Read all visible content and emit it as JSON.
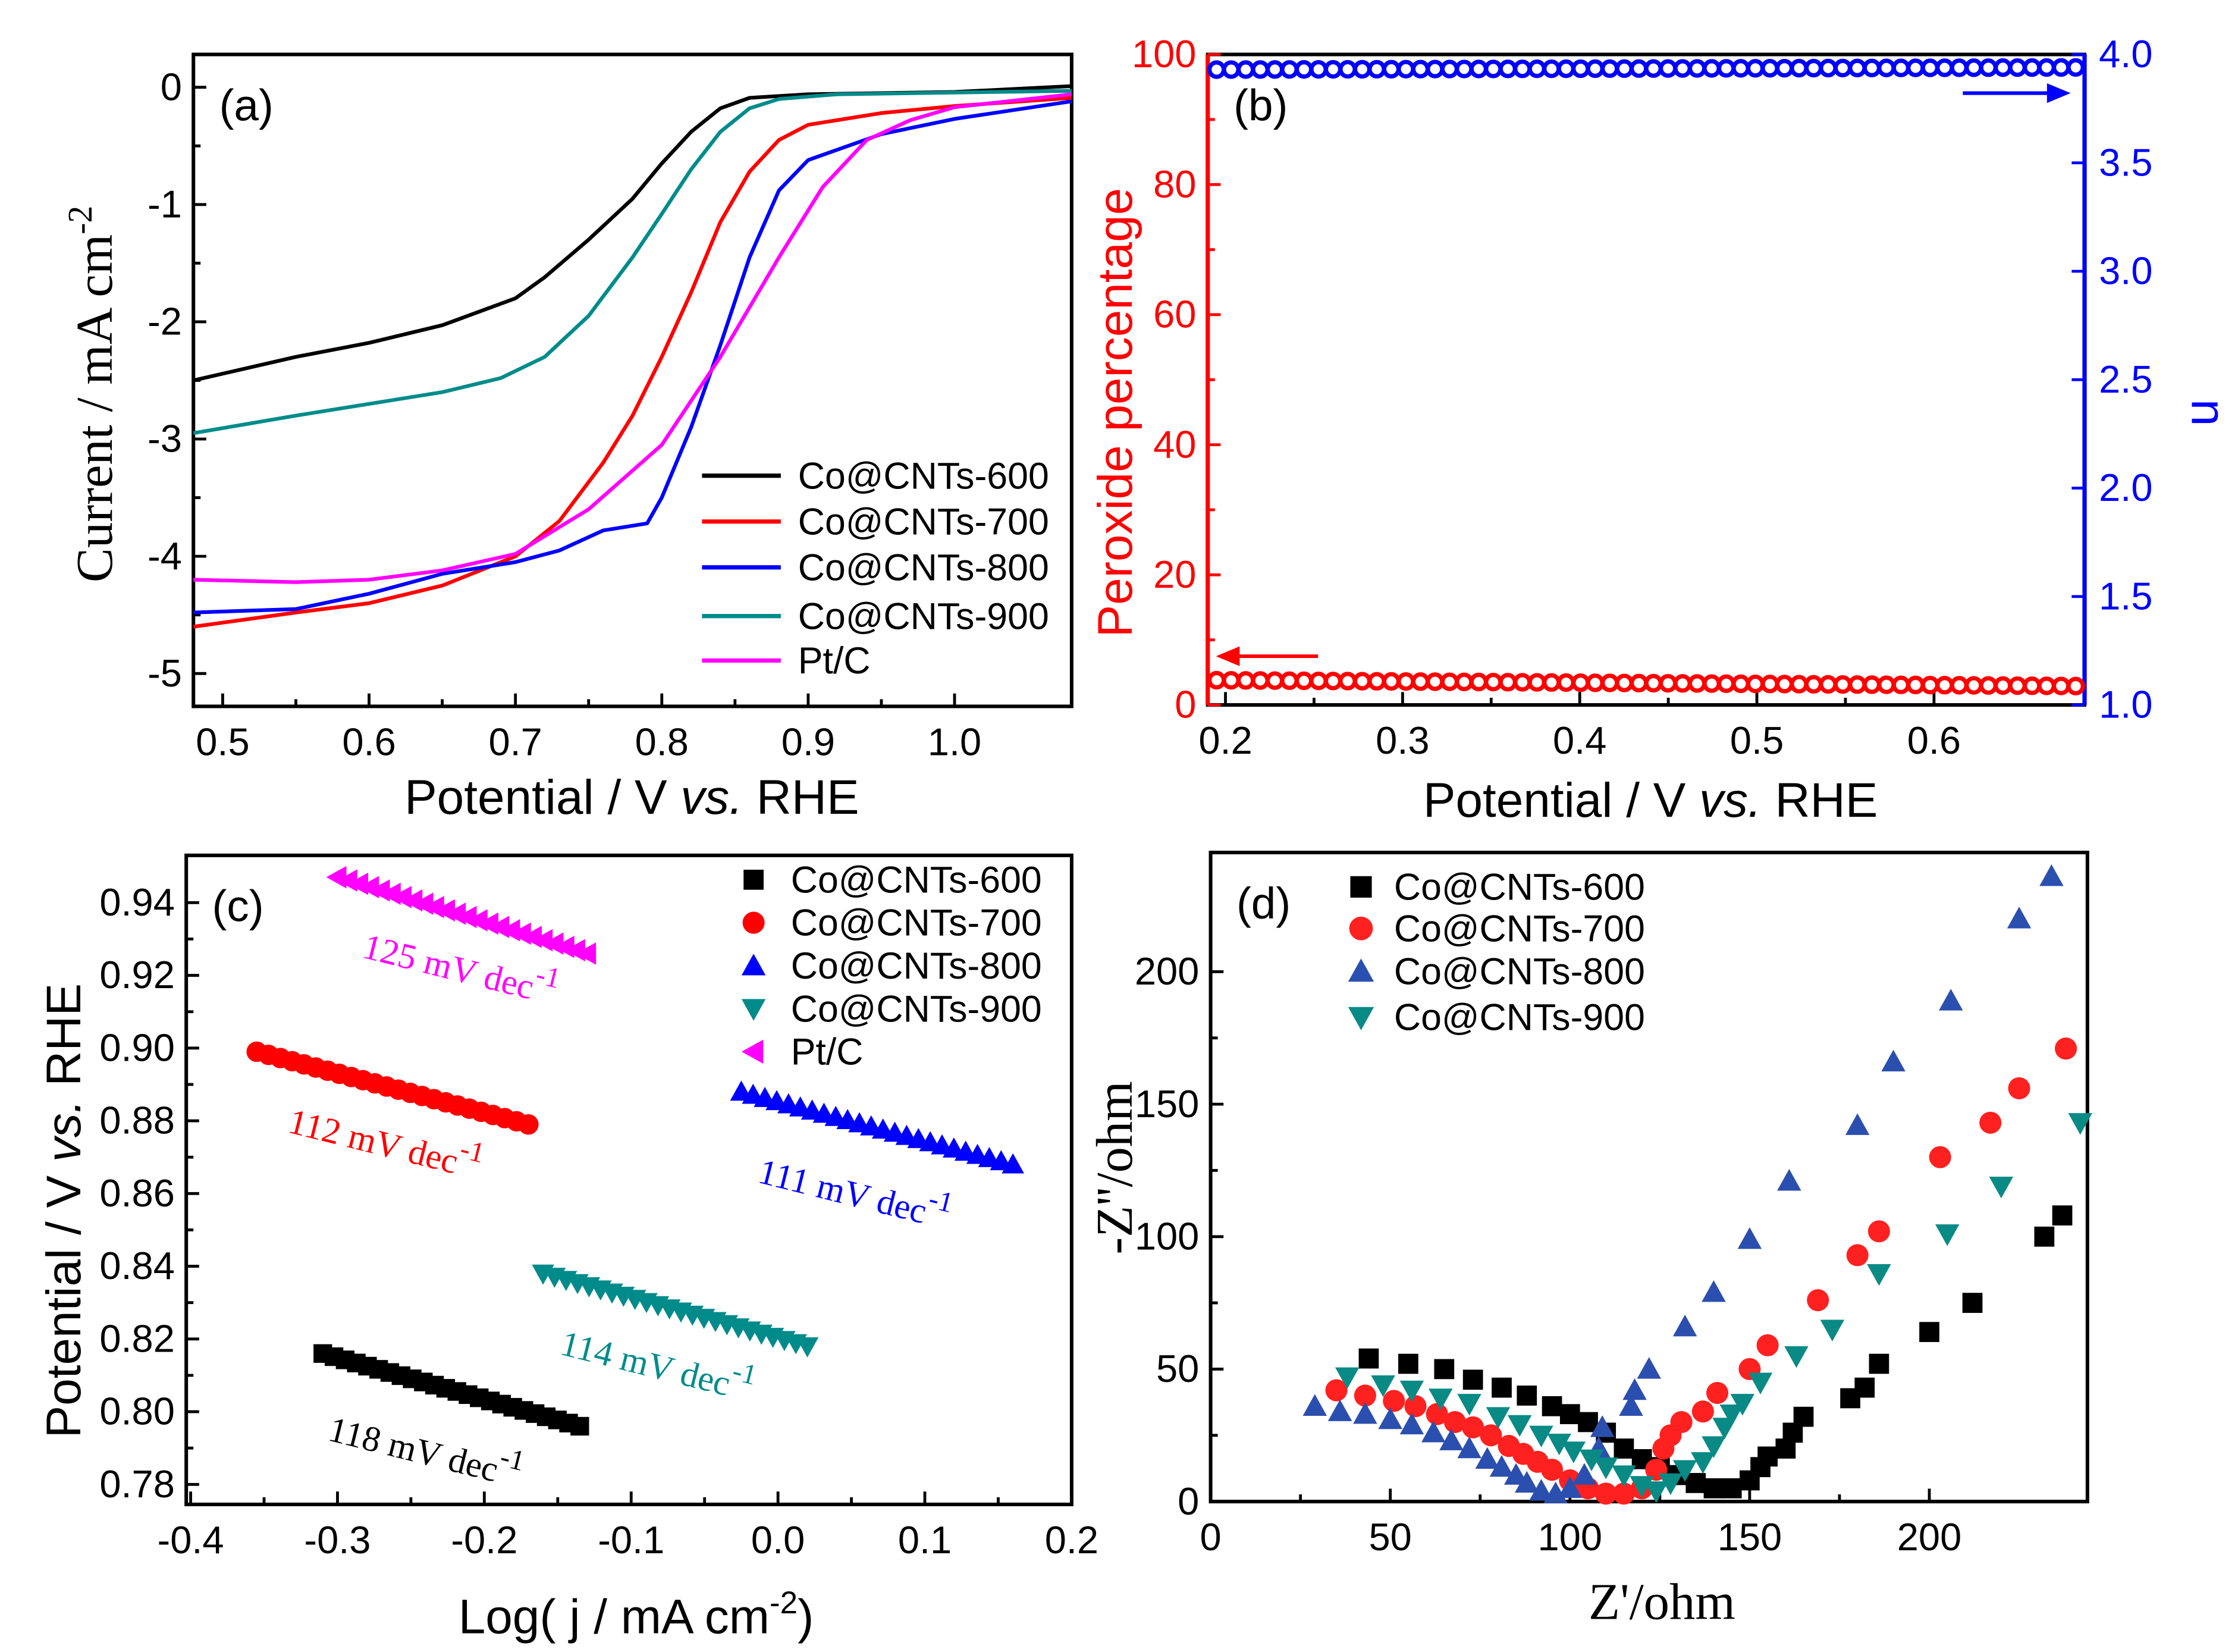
{
  "chart_data": [
    {
      "panel": "(a)",
      "type": "line",
      "xlabel": [
        "Potential / V ",
        "vs.",
        " RHE"
      ],
      "ylabel": "Current / mA cm",
      "ylabel_sup": "-2",
      "xlim": [
        0.48,
        1.08
      ],
      "ylim": [
        -5.28,
        0.28
      ],
      "xticks": [
        0.5,
        0.6,
        0.7,
        0.8,
        0.9,
        1.0
      ],
      "xtick_labels": [
        "0.5",
        "0.6",
        "0.7",
        "0.8",
        "0.9",
        "1.0"
      ],
      "yticks": [
        0,
        -1,
        -2,
        -3,
        -4,
        -5
      ],
      "ytick_labels": [
        "0",
        "-1",
        "-2",
        "-3",
        "-4",
        "-5"
      ],
      "legend_position": "bottom-right",
      "series": [
        {
          "name": "Co@CNTs-600",
          "color": "#000000",
          "x": [
            0.48,
            0.55,
            0.6,
            0.65,
            0.7,
            0.72,
            0.75,
            0.78,
            0.8,
            0.82,
            0.84,
            0.86,
            0.9,
            1.0,
            1.08
          ],
          "y": [
            -2.5,
            -2.3,
            -2.18,
            -2.03,
            -1.8,
            -1.62,
            -1.3,
            -0.95,
            -0.65,
            -0.38,
            -0.18,
            -0.09,
            -0.06,
            -0.04,
            0.01
          ]
        },
        {
          "name": "Co@CNTs-700",
          "color": "#ff0000",
          "x": [
            0.48,
            0.55,
            0.6,
            0.65,
            0.7,
            0.73,
            0.76,
            0.78,
            0.8,
            0.82,
            0.84,
            0.86,
            0.88,
            0.9,
            0.95,
            1.0,
            1.08
          ],
          "y": [
            -4.6,
            -4.48,
            -4.4,
            -4.25,
            -4.0,
            -3.7,
            -3.2,
            -2.8,
            -2.3,
            -1.75,
            -1.15,
            -0.72,
            -0.45,
            -0.32,
            -0.22,
            -0.16,
            -0.09
          ]
        },
        {
          "name": "Co@CNTs-800",
          "color": "#0000ff",
          "x": [
            0.48,
            0.55,
            0.6,
            0.65,
            0.7,
            0.73,
            0.76,
            0.79,
            0.8,
            0.82,
            0.84,
            0.86,
            0.88,
            0.9,
            0.95,
            1.0,
            1.08
          ],
          "y": [
            -4.48,
            -4.45,
            -4.32,
            -4.15,
            -4.05,
            -3.95,
            -3.78,
            -3.72,
            -3.5,
            -2.9,
            -2.2,
            -1.45,
            -0.88,
            -0.62,
            -0.4,
            -0.27,
            -0.12
          ]
        },
        {
          "name": "Co@CNTs-900",
          "color": "#008b8b",
          "x": [
            0.48,
            0.55,
            0.6,
            0.65,
            0.69,
            0.72,
            0.75,
            0.78,
            0.8,
            0.82,
            0.84,
            0.86,
            0.88,
            0.92,
            1.08
          ],
          "y": [
            -2.95,
            -2.8,
            -2.7,
            -2.6,
            -2.48,
            -2.3,
            -1.95,
            -1.45,
            -1.08,
            -0.7,
            -0.38,
            -0.18,
            -0.1,
            -0.06,
            -0.03
          ]
        },
        {
          "name": "Pt/C",
          "color": "#ff00ff",
          "x": [
            0.48,
            0.55,
            0.6,
            0.65,
            0.7,
            0.75,
            0.8,
            0.84,
            0.88,
            0.91,
            0.94,
            0.97,
            1.0,
            1.08
          ],
          "y": [
            -4.2,
            -4.22,
            -4.2,
            -4.12,
            -3.98,
            -3.6,
            -3.05,
            -2.3,
            -1.45,
            -0.85,
            -0.45,
            -0.28,
            -0.17,
            -0.06
          ]
        }
      ]
    },
    {
      "panel": "(b)",
      "type": "scatter",
      "xlabel": [
        "Potential / V ",
        "vs.",
        " RHE"
      ],
      "ylabel": "Peroxide percentage",
      "ylabel_right": "n",
      "xlim": [
        0.19,
        0.685
      ],
      "ylim": [
        0,
        100
      ],
      "ylim_right": [
        1.0,
        4.0
      ],
      "xticks": [
        0.2,
        0.3,
        0.4,
        0.5,
        0.6
      ],
      "xtick_labels": [
        "0.2",
        "0.3",
        "0.4",
        "0.5",
        "0.6"
      ],
      "yticks": [
        0,
        20,
        40,
        60,
        80,
        100
      ],
      "ytick_labels": [
        "0",
        "20",
        "40",
        "60",
        "80",
        "100"
      ],
      "yticks_right": [
        1.0,
        1.5,
        2.0,
        2.5,
        3.0,
        3.5,
        4.0
      ],
      "ytick_labels_right": [
        "1.0",
        "1.5",
        "2.0",
        "2.5",
        "3.0",
        "3.5",
        "4.0"
      ],
      "series": [
        {
          "name": "Peroxide percentage",
          "axis": "left",
          "color": "#ff0000",
          "x_range": [
            0.195,
            0.68
          ],
          "y_range": [
            3.8,
            2.9
          ],
          "count": 60
        },
        {
          "name": "n",
          "axis": "right",
          "color": "#0000ff",
          "x_range": [
            0.195,
            0.68
          ],
          "y_range": [
            3.93,
            3.94
          ],
          "count": 60
        }
      ]
    },
    {
      "panel": "(c)",
      "type": "scatter",
      "xlabel": "Log( j / mA cm",
      "xlabel_sup": "-2",
      "xlabel_end": ")",
      "ylabel": [
        "Potential / V ",
        "vs.",
        " RHE"
      ],
      "xlim": [
        -0.403,
        0.2
      ],
      "ylim": [
        0.7745,
        0.953
      ],
      "xticks": [
        -0.4,
        -0.3,
        -0.2,
        -0.1,
        0.0,
        0.1,
        0.2
      ],
      "xtick_labels": [
        "-0.4",
        "-0.3",
        "-0.2",
        "-0.1",
        "0.0",
        "0.1",
        "0.2"
      ],
      "yticks": [
        0.78,
        0.8,
        0.82,
        0.84,
        0.86,
        0.88,
        0.9,
        0.92,
        0.94
      ],
      "ytick_labels": [
        "0.78",
        "0.80",
        "0.82",
        "0.84",
        "0.86",
        "0.88",
        "0.90",
        "0.92",
        "0.94"
      ],
      "legend_position": "top-right",
      "series": [
        {
          "name": "Co@CNTs-600",
          "marker": "square",
          "color": "#000000",
          "x_range": [
            -0.31,
            -0.135
          ],
          "y_range": [
            0.816,
            0.796
          ],
          "count": 24,
          "slope": "118 mV dec",
          "slope_sup": "-1"
        },
        {
          "name": "Co@CNTs-700",
          "marker": "circle",
          "color": "#ff0000",
          "x_range": [
            -0.355,
            -0.17
          ],
          "y_range": [
            0.899,
            0.879
          ],
          "count": 24,
          "slope": "112 mV dec",
          "slope_sup": "-1"
        },
        {
          "name": "Co@CNTs-800",
          "marker": "triangle-up",
          "color": "#0000ff",
          "x_range": [
            -0.025,
            0.16
          ],
          "y_range": [
            0.888,
            0.868
          ],
          "count": 24,
          "slope": "111 mV dec",
          "slope_sup": "-1"
        },
        {
          "name": "Co@CNTs-900",
          "marker": "triangle-down",
          "color": "#008b8b",
          "x_range": [
            -0.16,
            0.02
          ],
          "y_range": [
            0.838,
            0.818
          ],
          "count": 24,
          "slope": "114 mV dec",
          "slope_sup": "-1"
        },
        {
          "name": "Pt/C",
          "marker": "triangle-left",
          "color": "#ff00ff",
          "x_range": [
            -0.3,
            -0.13
          ],
          "y_range": [
            0.947,
            0.926
          ],
          "count": 24,
          "slope": "125 mV dec",
          "slope_sup": "-1"
        }
      ]
    },
    {
      "panel": "(d)",
      "type": "scatter",
      "xlabel": "Z'/ohm",
      "ylabel": "-Z''/ohm",
      "xlim": [
        0,
        244
      ],
      "ylim": [
        0,
        245
      ],
      "xticks": [
        0,
        50,
        100,
        150,
        200
      ],
      "xtick_labels": [
        "0",
        "50",
        "100",
        "150",
        "200"
      ],
      "yticks": [
        0,
        50,
        100,
        150,
        200
      ],
      "ytick_labels": [
        "0",
        "50",
        "100",
        "150",
        "200"
      ],
      "legend_position": "top-left",
      "series": [
        {
          "name": "Co@CNTs-600",
          "marker": "square",
          "color": "#000000",
          "points": [
            [
              44,
              54
            ],
            [
              55,
              52
            ],
            [
              65,
              50
            ],
            [
              73,
              46
            ],
            [
              81,
              43
            ],
            [
              88,
              40
            ],
            [
              95,
              36
            ],
            [
              100,
              33
            ],
            [
              105,
              30
            ],
            [
              110,
              26
            ],
            [
              115,
              20
            ],
            [
              120,
              16
            ],
            [
              125,
              13
            ],
            [
              130,
              10
            ],
            [
              135,
              7
            ],
            [
              140,
              5
            ],
            [
              145,
              5
            ],
            [
              150,
              8
            ],
            [
              153,
              13
            ],
            [
              155,
              17
            ],
            [
              160,
              20
            ],
            [
              162,
              26
            ],
            [
              165,
              32
            ],
            [
              178,
              39
            ],
            [
              182,
              43
            ],
            [
              186,
              52
            ],
            [
              200,
              64
            ],
            [
              212,
              75
            ],
            [
              232,
              100
            ],
            [
              237,
              108
            ]
          ]
        },
        {
          "name": "Co@CNTs-700",
          "marker": "circle",
          "color": "#ff2020",
          "points": [
            [
              35,
              42
            ],
            [
              43,
              40
            ],
            [
              51,
              38
            ],
            [
              57,
              36
            ],
            [
              63,
              33
            ],
            [
              68,
              30
            ],
            [
              73,
              28
            ],
            [
              78,
              25
            ],
            [
              83,
              21
            ],
            [
              87,
              18
            ],
            [
              91,
              15
            ],
            [
              95,
              12
            ],
            [
              100,
              8
            ],
            [
              105,
              5
            ],
            [
              110,
              3
            ],
            [
              115,
              3
            ],
            [
              120,
              5
            ],
            [
              124,
              12
            ],
            [
              126,
              20
            ],
            [
              128,
              25
            ],
            [
              131,
              30
            ],
            [
              137,
              34
            ],
            [
              141,
              41
            ],
            [
              150,
              50
            ],
            [
              155,
              59
            ],
            [
              169,
              76
            ],
            [
              180,
              93
            ],
            [
              186,
              102
            ],
            [
              203,
              130
            ],
            [
              217,
              143
            ],
            [
              225,
              156
            ],
            [
              238,
              171
            ]
          ]
        },
        {
          "name": "Co@CNTs-800",
          "marker": "triangle-up",
          "color": "#2b4fae",
          "points": [
            [
              29,
              36
            ],
            [
              36,
              34
            ],
            [
              43,
              33
            ],
            [
              50,
              31
            ],
            [
              56,
              29
            ],
            [
              62,
              26
            ],
            [
              67,
              23
            ],
            [
              72,
              20
            ],
            [
              77,
              16
            ],
            [
              81,
              13
            ],
            [
              85,
              10
            ],
            [
              88,
              7
            ],
            [
              92,
              4
            ],
            [
              96,
              3
            ],
            [
              100,
              5
            ],
            [
              104,
              10
            ],
            [
              108,
              20
            ],
            [
              109,
              28
            ],
            [
              117,
              36
            ],
            [
              118,
              42
            ],
            [
              122,
              50
            ],
            [
              132,
              66
            ],
            [
              140,
              79
            ],
            [
              150,
              99
            ],
            [
              161,
              121
            ],
            [
              180,
              142
            ],
            [
              190,
              166
            ],
            [
              206,
              189
            ],
            [
              225,
              220
            ],
            [
              234,
              236
            ]
          ]
        },
        {
          "name": "Co@CNTs-900",
          "marker": "triangle-down",
          "color": "#0a8a85",
          "points": [
            [
              38,
              47
            ],
            [
              48,
              44
            ],
            [
              56,
              42
            ],
            [
              64,
              39
            ],
            [
              72,
              37
            ],
            [
              80,
              32
            ],
            [
              86,
              29
            ],
            [
              92,
              25
            ],
            [
              97,
              22
            ],
            [
              101,
              19
            ],
            [
              106,
              16
            ],
            [
              110,
              13
            ],
            [
              115,
              10
            ],
            [
              120,
              6
            ],
            [
              124,
              4
            ],
            [
              128,
              7
            ],
            [
              132,
              12
            ],
            [
              137,
              15
            ],
            [
              140,
              21
            ],
            [
              143,
              28
            ],
            [
              145,
              33
            ],
            [
              148,
              37
            ],
            [
              153,
              45
            ],
            [
              163,
              55
            ],
            [
              173,
              65
            ],
            [
              186,
              86
            ],
            [
              205,
              101
            ],
            [
              220,
              119
            ],
            [
              242,
              143
            ]
          ]
        }
      ]
    }
  ]
}
